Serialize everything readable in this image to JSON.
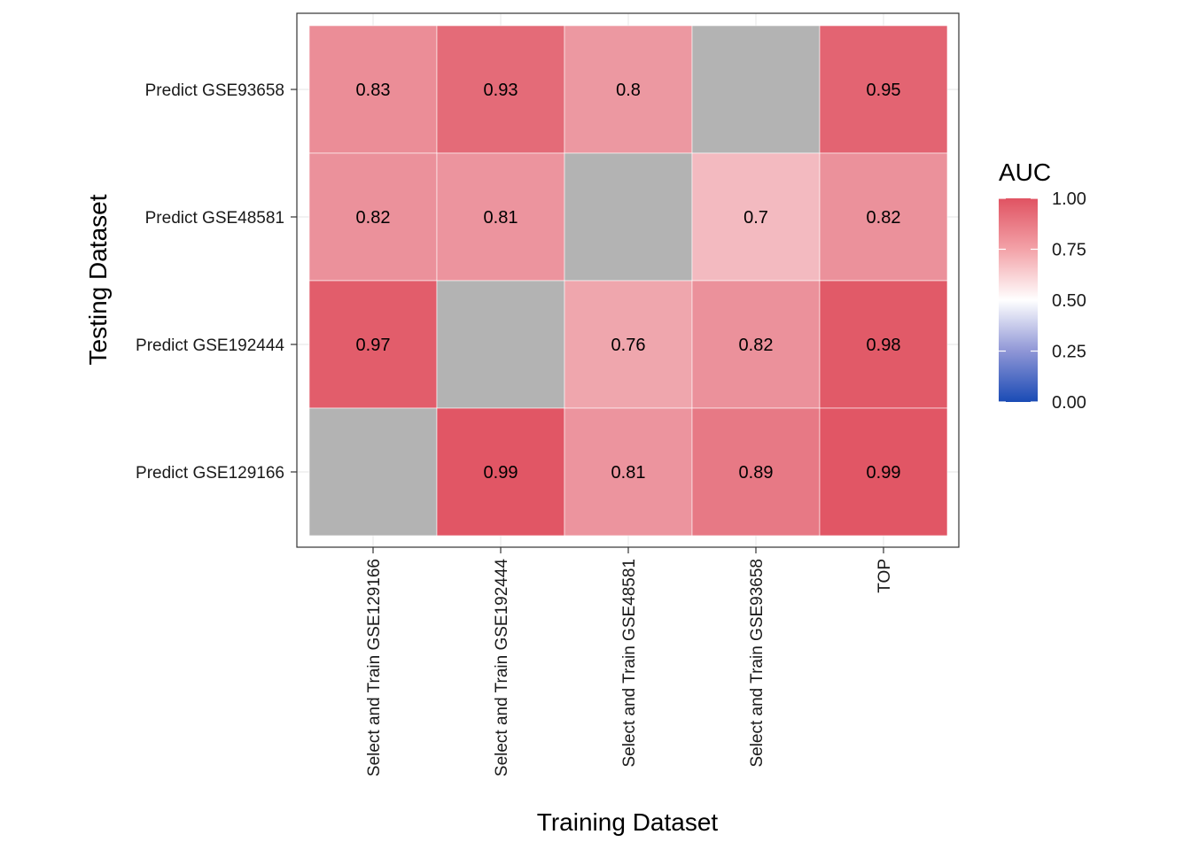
{
  "chart_data": {
    "type": "heatmap",
    "title": "",
    "xlabel": "Training Dataset",
    "ylabel": "Testing Dataset",
    "x_categories": [
      "Select and Train GSE129166",
      "Select and Train GSE192444",
      "Select and Train GSE48581",
      "Select and Train GSE93658",
      "TOP"
    ],
    "y_categories": [
      "Predict GSE93658",
      "Predict GSE48581",
      "Predict GSE192444",
      "Predict GSE129166"
    ],
    "values": [
      [
        0.83,
        0.93,
        0.8,
        null,
        0.95
      ],
      [
        0.82,
        0.81,
        null,
        0.7,
        0.82
      ],
      [
        0.97,
        null,
        0.76,
        0.82,
        0.98
      ],
      [
        null,
        0.99,
        0.81,
        0.89,
        0.99
      ]
    ],
    "missing_color": "#b3b3b3",
    "legend": {
      "title": "AUC",
      "ticks": [
        "1.00",
        "0.75",
        "0.50",
        "0.25",
        "0.00"
      ],
      "range": [
        0,
        1
      ],
      "colors": {
        "low": "#1a4bb5",
        "mid": "#ffffff",
        "high": "#e05362"
      }
    },
    "grid": true,
    "legend_position": "right"
  }
}
